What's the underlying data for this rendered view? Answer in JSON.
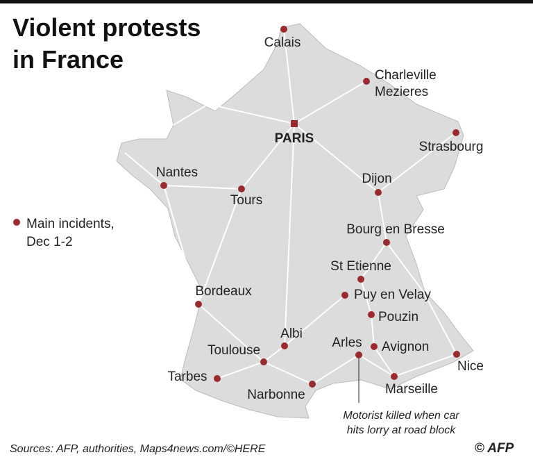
{
  "title": [
    "Violent protests",
    "in France"
  ],
  "legend": [
    "Main incidents,",
    "Dec 1-2"
  ],
  "capital": "PARIS",
  "cities": [
    [
      "Calais"
    ],
    [
      "Charleville",
      "Mezieres"
    ],
    [
      "Strasbourg"
    ],
    [
      "Nantes"
    ],
    [
      "Tours"
    ],
    [
      "Dijon"
    ],
    [
      "Bourg en Bresse"
    ],
    [
      "St Etienne"
    ],
    [
      "Puy en Velay"
    ],
    [
      "Pouzin"
    ],
    [
      "Avignon"
    ],
    [
      "Arles"
    ],
    [
      "Marseille"
    ],
    [
      "Nice"
    ],
    [
      "Bordeaux"
    ],
    [
      "Albi"
    ],
    [
      "Toulouse"
    ],
    [
      "Tarbes"
    ],
    [
      "Narbonne"
    ]
  ],
  "annotation": [
    "Motorist killed when car",
    "hits lorry at road block"
  ],
  "sources": "Sources: AFP, authorities, Maps4news.com/©HERE",
  "credit": "© AFP"
}
